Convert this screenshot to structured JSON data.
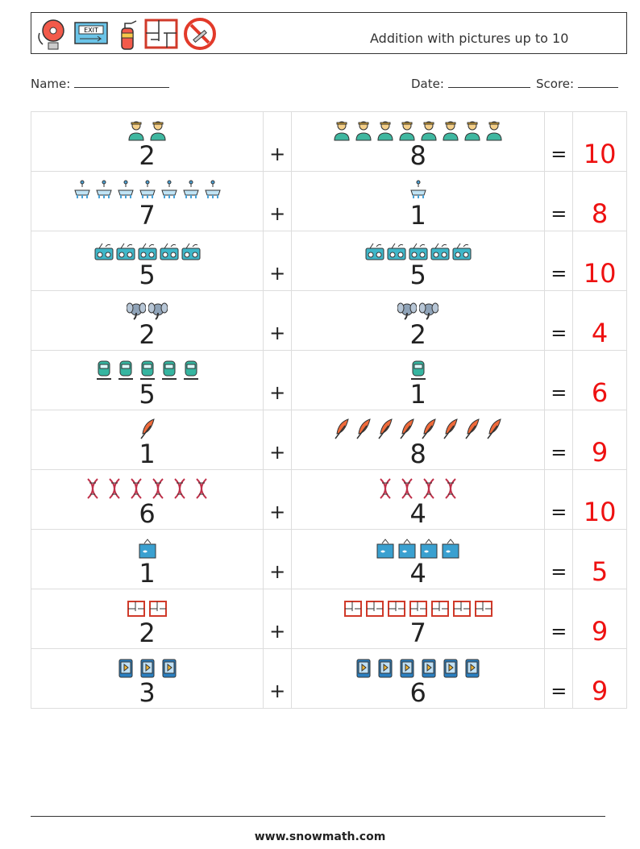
{
  "header": {
    "title": "Addition with pictures up to 10",
    "icons": [
      "fire-alarm-bell-icon",
      "exit-sign-icon",
      "fire-extinguisher-icon",
      "floor-plan-icon",
      "no-smoking-icon"
    ]
  },
  "meta": {
    "name_label": "Name:",
    "date_label": "Date:",
    "score_label": "Score:"
  },
  "operators": {
    "plus": "+",
    "equals": "="
  },
  "rows": [
    {
      "a": "2",
      "a_count": 2,
      "b": "8",
      "b_count": 8,
      "answer": "10",
      "icon": "firefighter-icon",
      "color": "#f2b632"
    },
    {
      "a": "7",
      "a_count": 7,
      "b": "1",
      "b_count": 1,
      "answer": "8",
      "icon": "chandelier-icon",
      "color": "#4aa3d8"
    },
    {
      "a": "5",
      "a_count": 5,
      "b": "5",
      "b_count": 5,
      "answer": "10",
      "icon": "radio-icon",
      "color": "#3fb7c9"
    },
    {
      "a": "2",
      "a_count": 2,
      "b": "2",
      "b_count": 2,
      "answer": "4",
      "icon": "elephant-icon",
      "color": "#8fa3b8"
    },
    {
      "a": "5",
      "a_count": 5,
      "b": "1",
      "b_count": 1,
      "answer": "6",
      "icon": "tram-icon",
      "color": "#36b5a0"
    },
    {
      "a": "1",
      "a_count": 1,
      "b": "8",
      "b_count": 8,
      "answer": "9",
      "icon": "feather-icon",
      "color": "#f06a3a"
    },
    {
      "a": "6",
      "a_count": 6,
      "b": "4",
      "b_count": 4,
      "answer": "10",
      "icon": "dna-icon",
      "color": "#c0304a"
    },
    {
      "a": "1",
      "a_count": 1,
      "b": "4",
      "b_count": 4,
      "answer": "5",
      "icon": "aquarium-icon",
      "color": "#3aa0d0"
    },
    {
      "a": "2",
      "a_count": 2,
      "b": "7",
      "b_count": 7,
      "answer": "9",
      "icon": "floor-plan-icon",
      "color": "#d03a2a"
    },
    {
      "a": "3",
      "a_count": 3,
      "b": "6",
      "b_count": 6,
      "answer": "9",
      "icon": "play-card-icon",
      "color": "#2a7fc0"
    }
  ],
  "footer": {
    "url": "www.snowmath.com"
  }
}
